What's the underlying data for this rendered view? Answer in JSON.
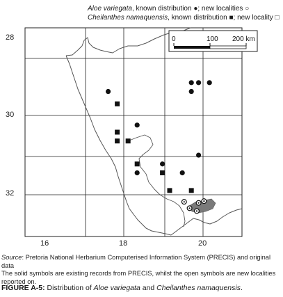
{
  "legend": {
    "line1_species": "Aloe variegata",
    "line1_text": ", known distribution ",
    "line1_known_symbol": "●",
    "line1_sep": "; new localities ",
    "line1_new_symbol": "○",
    "line2_species": "Cheilanthes namaquensis",
    "line2_text": ", known distribution ",
    "line2_known_symbol": "■",
    "line2_sep": "; new locality ",
    "line2_new_symbol": "□"
  },
  "axes": {
    "y_labels": [
      "28",
      "30",
      "32"
    ],
    "x_labels": [
      "16",
      "18",
      "20"
    ]
  },
  "scale_bar": {
    "labels": [
      "0",
      "100",
      "200 km"
    ]
  },
  "map": {
    "lon_range": [
      15.3,
      21.3
    ],
    "lat_range": [
      27.4,
      33.3
    ],
    "aloe_known": [
      [
        17.6,
        29.2
      ],
      [
        18.4,
        30.15
      ],
      [
        19.9,
        28.95
      ],
      [
        20.1,
        28.95
      ],
      [
        20.4,
        28.95
      ],
      [
        19.9,
        29.2
      ],
      [
        20.1,
        31.0
      ],
      [
        18.4,
        31.5
      ],
      [
        19.1,
        31.25
      ],
      [
        19.65,
        31.5
      ]
    ],
    "cheilanthes_known": [
      [
        17.85,
        29.55
      ],
      [
        17.85,
        30.35
      ],
      [
        17.85,
        30.6
      ],
      [
        18.15,
        30.6
      ],
      [
        18.4,
        31.25
      ],
      [
        19.1,
        31.5
      ],
      [
        19.3,
        32.0
      ],
      [
        19.9,
        32.0
      ]
    ],
    "aloe_new": [
      [
        19.7,
        32.32
      ],
      [
        19.85,
        32.5
      ],
      [
        20.1,
        32.35
      ],
      [
        20.25,
        32.3
      ],
      [
        20.05,
        32.58
      ]
    ],
    "colors": {
      "land_line": "#555555",
      "grid": "#222222",
      "marker": "#111111",
      "cluster_fill": "#7a7a7a"
    }
  },
  "caption": {
    "source_label": "Source",
    "source_text": ": Pretoria National Herbarium Computerised Information System (PRECIS) and original data",
    "line2": "The solid symbols are existing records from PRECIS, whilst the open symbols are new localities",
    "line3": "reported on."
  },
  "figure": {
    "label": "FIGURE A-5:",
    "text1": " Distribution of ",
    "species1": "Aloe variegata",
    "text2": " and ",
    "species2": "Cheilanthes namaquensis",
    "text3": "."
  }
}
